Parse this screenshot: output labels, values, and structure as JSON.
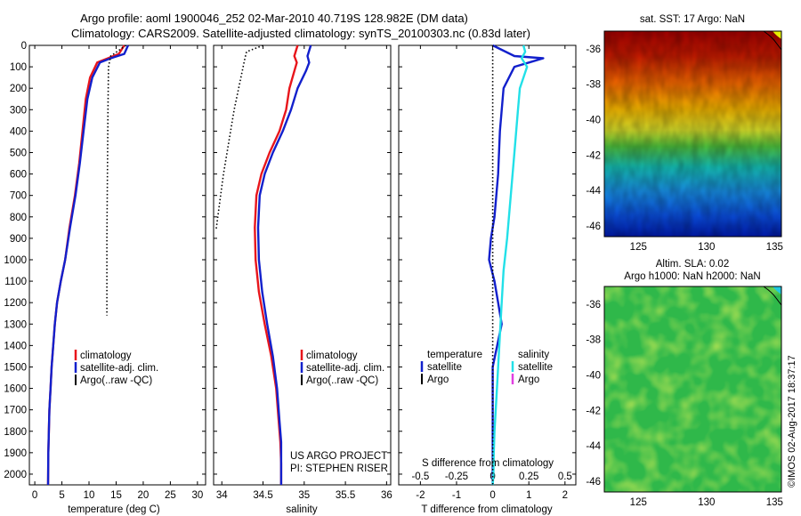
{
  "title_line1": "Argo profile: aoml 1900046_252 02-Mar-2010 40.719S 128.982E (DM data)",
  "title_line2": "Climatology: CARS2009. Satellite-adjusted climatology: synTS_20100303.nc (0.83d later)",
  "footer_vertical": "©IMOS 02-Aug-2017 18:37:17",
  "colors": {
    "climatology": "#e8151b",
    "satellite": "#1220cc",
    "argo": "#000000",
    "salinity_satellite": "#22e0e8",
    "salinity_argo": "#e040e0"
  },
  "chart_data": [
    {
      "name": "temperature",
      "type": "line",
      "xlabel": "temperature (deg C)",
      "xlim": [
        -1,
        31.5
      ],
      "xticks": [
        "0",
        "5",
        "10",
        "15",
        "20",
        "25",
        "30"
      ],
      "xtick_values": [
        0,
        5,
        10,
        15,
        20,
        25,
        30
      ],
      "ylim": [
        2050,
        0
      ],
      "yticks": [
        "0",
        "100",
        "200",
        "300",
        "400",
        "500",
        "600",
        "700",
        "800",
        "900",
        "1000",
        "1100",
        "1200",
        "1300",
        "1400",
        "1500",
        "1600",
        "1700",
        "1800",
        "1900",
        "2000"
      ],
      "ytick_values": [
        0,
        100,
        200,
        300,
        400,
        500,
        600,
        700,
        800,
        900,
        1000,
        1100,
        1200,
        1300,
        1400,
        1500,
        1600,
        1700,
        1800,
        1900,
        2000
      ],
      "legend": [
        "climatology",
        "satellite-adj. clim.",
        "Argo(..raw -QC)"
      ],
      "series": [
        {
          "name": "climatology",
          "color": "#e8151b",
          "style": "solid",
          "x": [
            16.5,
            15.5,
            13.5,
            11.5,
            10.2,
            9.4,
            8.8,
            8.2,
            7.4,
            6.4,
            5.6,
            4.8,
            4.1,
            3.7,
            3.4,
            3.1,
            2.9,
            2.7,
            2.6,
            2.5,
            2.45
          ],
          "y": [
            0,
            40,
            60,
            80,
            150,
            250,
            400,
            550,
            700,
            850,
            1000,
            1100,
            1200,
            1300,
            1400,
            1500,
            1600,
            1700,
            1800,
            1900,
            2050
          ]
        },
        {
          "name": "satellite-adj. clim.",
          "color": "#1220cc",
          "style": "solid",
          "x": [
            17.2,
            16.5,
            14.0,
            12.0,
            10.6,
            9.7,
            9.0,
            8.3,
            7.5,
            6.5,
            5.6,
            4.8,
            4.1,
            3.7,
            3.4,
            3.1,
            2.9,
            2.7,
            2.6,
            2.5,
            2.45
          ],
          "y": [
            0,
            40,
            60,
            80,
            150,
            250,
            400,
            550,
            700,
            850,
            1000,
            1100,
            1200,
            1300,
            1400,
            1500,
            1600,
            1700,
            1800,
            1900,
            2050
          ]
        },
        {
          "name": "Argo(..raw -QC)",
          "color": "#000000",
          "style": "dotted",
          "x": [
            16.8,
            14.0,
            13.6,
            13.5,
            13.4,
            13.3,
            13.3,
            13.3
          ],
          "y": [
            0,
            50,
            100,
            300,
            600,
            900,
            1100,
            1260
          ]
        }
      ]
    },
    {
      "name": "salinity",
      "type": "line",
      "xlabel": "salinity",
      "xlim": [
        33.9,
        36.05
      ],
      "xticks": [
        "34",
        "34.5",
        "35",
        "35.5",
        "36"
      ],
      "xtick_values": [
        34,
        34.5,
        35,
        35.5,
        36
      ],
      "ylim": [
        2050,
        0
      ],
      "legend": [
        "climatology",
        "satellite-adj. clim.",
        "Argo(..raw -QC)"
      ],
      "annotation": [
        "US ARGO PROJECT",
        "PI: STEPHEN RISER"
      ],
      "series": [
        {
          "name": "climatology",
          "color": "#e8151b",
          "style": "solid",
          "x": [
            34.92,
            34.88,
            34.91,
            34.88,
            34.82,
            34.78,
            34.7,
            34.58,
            34.48,
            34.42,
            34.4,
            34.41,
            34.45,
            34.52,
            34.6,
            34.66,
            34.69,
            34.71,
            34.72,
            34.72,
            34.72
          ],
          "y": [
            0,
            50,
            80,
            120,
            200,
            300,
            400,
            500,
            600,
            700,
            850,
            1000,
            1150,
            1300,
            1450,
            1600,
            1750,
            1850,
            1950,
            2000,
            2050
          ]
        },
        {
          "name": "satellite-adj. clim.",
          "color": "#1220cc",
          "style": "solid",
          "x": [
            35.08,
            35.04,
            35.06,
            35.02,
            34.92,
            34.84,
            34.74,
            34.62,
            34.52,
            34.46,
            34.44,
            34.45,
            34.49,
            34.55,
            34.62,
            34.67,
            34.7,
            34.72,
            34.72,
            34.72,
            34.72
          ],
          "y": [
            0,
            50,
            80,
            120,
            200,
            300,
            400,
            500,
            600,
            700,
            850,
            1000,
            1150,
            1300,
            1450,
            1600,
            1750,
            1850,
            1950,
            2000,
            2050
          ]
        },
        {
          "name": "Argo(..raw -QC)",
          "color": "#000000",
          "style": "dotted",
          "x": [
            34.5,
            34.3,
            34.28,
            34.15,
            34.02,
            33.93
          ],
          "y": [
            0,
            30,
            60,
            300,
            600,
            860
          ]
        }
      ]
    },
    {
      "name": "difference",
      "type": "line",
      "xlabel": "T difference from climatology",
      "xlabel_top": "S difference from climatology",
      "xlim": [
        -2.6,
        2.3
      ],
      "xticks": [
        "-2",
        "-1",
        "0",
        "1",
        "2"
      ],
      "xtick_values": [
        -2,
        -1,
        0,
        1,
        2
      ],
      "xticks_top": [
        "-0.5",
        "-0.25",
        "0",
        "0.25",
        "0.5"
      ],
      "xticks_top_values": [
        -2,
        -1,
        0,
        1,
        2
      ],
      "ylim": [
        2050,
        0
      ],
      "legend_temperature": [
        "temperature",
        "satellite",
        "Argo"
      ],
      "legend_salinity": [
        "salinity",
        "satellite",
        "Argo"
      ],
      "series": [
        {
          "name": "temperature satellite",
          "color": "#1220cc",
          "style": "solid",
          "x": [
            0,
            0.6,
            1.4,
            1.0,
            0.6,
            0.3,
            0.2,
            0.15,
            0.05,
            -0.05,
            -0.1,
            0.05,
            0.15,
            0.25,
            0.0,
            0.0,
            0.0,
            0.0,
            0.0
          ],
          "y": [
            0,
            50,
            60,
            80,
            100,
            200,
            400,
            600,
            800,
            900,
            1000,
            1100,
            1200,
            1300,
            1500,
            1700,
            1900,
            2000,
            2050
          ]
        },
        {
          "name": "salinity satellite",
          "color": "#22e0e8",
          "style": "solid",
          "x": [
            0.85,
            0.9,
            0.8,
            0.95,
            0.75,
            0.7,
            0.6,
            0.5,
            0.4,
            0.3,
            0.25,
            0.2,
            0.15,
            0.1,
            0.05,
            0.03,
            0.02,
            0.0
          ],
          "y": [
            0,
            30,
            60,
            100,
            200,
            300,
            500,
            700,
            900,
            1050,
            1200,
            1350,
            1500,
            1650,
            1800,
            1900,
            2000,
            2050
          ]
        },
        {
          "name": "zero",
          "color": "#000000",
          "style": "dotted",
          "x": [
            0,
            0
          ],
          "y": [
            0,
            2050
          ]
        }
      ]
    },
    {
      "name": "sst_map",
      "type": "heatmap",
      "title": "sat. SST: 17 Argo: NaN",
      "xlim": [
        122.5,
        135.5
      ],
      "ylim": [
        -46.6,
        -35
      ],
      "xticks": [
        "125",
        "130",
        "135"
      ],
      "xtick_values": [
        125,
        130,
        135
      ],
      "yticks": [
        "-36",
        "-38",
        "-40",
        "-42",
        "-44",
        "-46"
      ],
      "ytick_values": [
        -36,
        -38,
        -40,
        -42,
        -44,
        -46
      ],
      "marker": {
        "lon": 128.982,
        "lat": -40.719
      }
    },
    {
      "name": "sla_map",
      "type": "heatmap",
      "title_line1": "Altim. SLA: 0.02",
      "title_line2": "Argo h1000: NaN h2000: NaN",
      "xlim": [
        122.5,
        135.5
      ],
      "ylim": [
        -46.6,
        -35
      ],
      "xticks": [
        "125",
        "130",
        "135"
      ],
      "xtick_values": [
        125,
        130,
        135
      ],
      "yticks": [
        "-36",
        "-38",
        "-40",
        "-42",
        "-44",
        "-46"
      ],
      "ytick_values": [
        -36,
        -38,
        -40,
        -42,
        -44,
        -46
      ],
      "marker": {
        "lon": 128.982,
        "lat": -40.719
      }
    }
  ]
}
